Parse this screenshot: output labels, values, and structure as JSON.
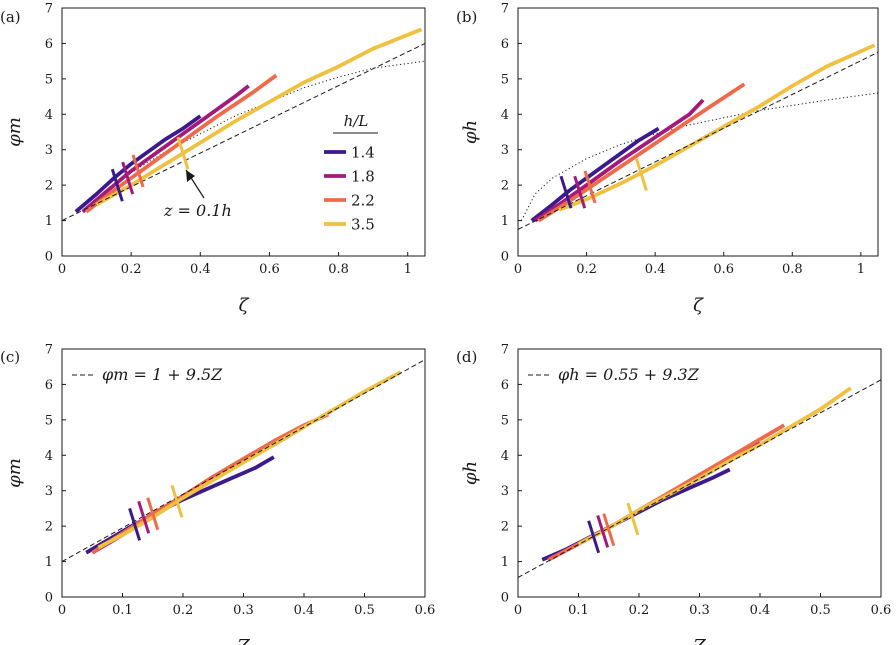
{
  "chart_data": [
    {
      "type": "line",
      "panel_label": "(a)",
      "xlabel": "ζ",
      "ylabel": "φm",
      "xlim": [
        0,
        1.05
      ],
      "ylim": [
        0,
        7
      ],
      "xticks": [
        "0",
        "0.2",
        "0.4",
        "0.6",
        "0.8",
        "1"
      ],
      "yticks": [
        "0",
        "1",
        "2",
        "3",
        "4",
        "5",
        "6",
        "7"
      ],
      "series": [
        {
          "name": "1.4",
          "color": "#3b1a8c",
          "x": [
            0.04,
            0.1,
            0.15,
            0.2,
            0.25,
            0.3,
            0.35,
            0.4
          ],
          "y": [
            1.25,
            1.75,
            2.2,
            2.6,
            2.95,
            3.3,
            3.6,
            3.95
          ],
          "marker_x": 0.16,
          "marker_y": 2.0
        },
        {
          "name": "1.8",
          "color": "#a31a7a",
          "x": [
            0.06,
            0.12,
            0.2,
            0.3,
            0.4,
            0.5,
            0.54
          ],
          "y": [
            1.25,
            1.75,
            2.4,
            3.1,
            3.8,
            4.5,
            4.8
          ],
          "marker_x": 0.19,
          "marker_y": 2.2
        },
        {
          "name": "2.2",
          "color": "#ef6a4a",
          "x": [
            0.07,
            0.15,
            0.25,
            0.35,
            0.45,
            0.55,
            0.62
          ],
          "y": [
            1.25,
            1.85,
            2.55,
            3.25,
            3.95,
            4.6,
            5.1
          ],
          "marker_x": 0.22,
          "marker_y": 2.4
        },
        {
          "name": "3.5",
          "color": "#f0c040",
          "x": [
            0.1,
            0.2,
            0.3,
            0.4,
            0.5,
            0.6,
            0.7,
            0.8,
            0.9,
            1.04
          ],
          "y": [
            1.45,
            2.0,
            2.6,
            3.2,
            3.8,
            4.35,
            4.9,
            5.35,
            5.85,
            6.4
          ],
          "marker_x": 0.35,
          "marker_y": 2.9
        }
      ],
      "reference_dashed": {
        "x": [
          0,
          1.05
        ],
        "y": [
          1.0,
          6.0
        ]
      },
      "reference_dotted": {
        "x": [
          0.12,
          0.2,
          0.3,
          0.4,
          0.5,
          0.6,
          0.7,
          0.8,
          0.9,
          1.05
        ],
        "y": [
          1.75,
          2.35,
          2.95,
          3.45,
          3.95,
          4.35,
          4.75,
          5.05,
          5.3,
          5.5
        ]
      },
      "legend_title": "h/L",
      "legend": [
        "1.4",
        "1.8",
        "2.2",
        "3.5"
      ],
      "annotation": "z = 0.1h"
    },
    {
      "type": "line",
      "panel_label": "(b)",
      "xlabel": "ζ",
      "ylabel": "φh",
      "xlim": [
        0,
        1.05
      ],
      "ylim": [
        0,
        7
      ],
      "xticks": [
        "0",
        "0.2",
        "0.4",
        "0.6",
        "0.8",
        "1"
      ],
      "yticks": [
        "0",
        "1",
        "2",
        "3",
        "4",
        "5",
        "6",
        "7"
      ],
      "series": [
        {
          "name": "1.4",
          "color": "#3b1a8c",
          "x": [
            0.04,
            0.1,
            0.15,
            0.2,
            0.25,
            0.3,
            0.35,
            0.41
          ],
          "y": [
            1.0,
            1.45,
            1.85,
            2.2,
            2.55,
            2.9,
            3.25,
            3.6
          ],
          "marker_x": 0.14,
          "marker_y": 1.8
        },
        {
          "name": "1.8",
          "color": "#a31a7a",
          "x": [
            0.05,
            0.12,
            0.2,
            0.3,
            0.4,
            0.5,
            0.54
          ],
          "y": [
            1.0,
            1.45,
            2.0,
            2.7,
            3.35,
            4.0,
            4.4
          ],
          "marker_x": 0.18,
          "marker_y": 1.8
        },
        {
          "name": "2.2",
          "color": "#ef6a4a",
          "x": [
            0.06,
            0.15,
            0.25,
            0.35,
            0.45,
            0.55,
            0.66
          ],
          "y": [
            1.0,
            1.55,
            2.2,
            2.85,
            3.5,
            4.15,
            4.85
          ],
          "marker_x": 0.21,
          "marker_y": 1.95
        },
        {
          "name": "3.5",
          "color": "#f0c040",
          "x": [
            0.12,
            0.2,
            0.3,
            0.4,
            0.5,
            0.6,
            0.7,
            0.8,
            0.9,
            1.04
          ],
          "y": [
            1.3,
            1.6,
            2.05,
            2.55,
            3.1,
            3.65,
            4.2,
            4.8,
            5.35,
            5.95
          ],
          "marker_x": 0.36,
          "marker_y": 2.3
        }
      ],
      "reference_dashed": {
        "x": [
          0,
          1.05
        ],
        "y": [
          0.75,
          5.75
        ]
      },
      "reference_dotted": {
        "x": [
          0.01,
          0.05,
          0.1,
          0.2,
          0.3,
          0.4,
          0.5,
          0.6,
          0.7,
          0.8,
          0.9,
          1.05
        ],
        "y": [
          1.0,
          1.75,
          2.2,
          2.75,
          3.15,
          3.45,
          3.7,
          3.9,
          4.1,
          4.25,
          4.4,
          4.6
        ]
      }
    },
    {
      "type": "line",
      "panel_label": "(c)",
      "xlabel": "Z",
      "ylabel": "φm",
      "xlim": [
        0,
        0.6
      ],
      "ylim": [
        0,
        7
      ],
      "xticks": [
        "0",
        "0.1",
        "0.2",
        "0.3",
        "0.4",
        "0.5",
        "0.6"
      ],
      "yticks": [
        "0",
        "1",
        "2",
        "3",
        "4",
        "5",
        "6",
        "7"
      ],
      "series": [
        {
          "name": "1.4",
          "color": "#3b1a8c",
          "x": [
            0.04,
            0.08,
            0.12,
            0.16,
            0.2,
            0.24,
            0.28,
            0.32,
            0.35
          ],
          "y": [
            1.25,
            1.65,
            2.05,
            2.4,
            2.75,
            3.05,
            3.35,
            3.65,
            3.95
          ],
          "marker_x": 0.12,
          "marker_y": 2.05
        },
        {
          "name": "1.8",
          "color": "#a31a7a",
          "x": [
            0.05,
            0.1,
            0.15,
            0.2,
            0.25,
            0.3,
            0.35,
            0.4
          ],
          "y": [
            1.25,
            1.75,
            2.3,
            2.85,
            3.35,
            3.85,
            4.3,
            4.8
          ],
          "marker_x": 0.135,
          "marker_y": 2.25
        },
        {
          "name": "2.2",
          "color": "#ef6a4a",
          "x": [
            0.05,
            0.1,
            0.15,
            0.2,
            0.25,
            0.3,
            0.35,
            0.4,
            0.44
          ],
          "y": [
            1.25,
            1.8,
            2.35,
            2.85,
            3.4,
            3.9,
            4.4,
            4.85,
            5.15
          ],
          "marker_x": 0.15,
          "marker_y": 2.35
        },
        {
          "name": "3.5",
          "color": "#f0c040",
          "x": [
            0.06,
            0.1,
            0.15,
            0.2,
            0.25,
            0.3,
            0.35,
            0.4,
            0.45,
            0.5,
            0.56
          ],
          "y": [
            1.4,
            1.75,
            2.25,
            2.8,
            3.3,
            3.8,
            4.3,
            4.8,
            5.3,
            5.8,
            6.35
          ],
          "marker_x": 0.19,
          "marker_y": 2.7
        }
      ],
      "reference_dashed": {
        "x": [
          0,
          0.6
        ],
        "y": [
          1.0,
          6.7
        ]
      },
      "fit_label": "φm = 1 + 9.5Z"
    },
    {
      "type": "line",
      "panel_label": "(d)",
      "xlabel": "Z",
      "ylabel": "φh",
      "xlim": [
        0,
        0.6
      ],
      "ylim": [
        0,
        7
      ],
      "xticks": [
        "0",
        "0.1",
        "0.2",
        "0.3",
        "0.4",
        "0.5",
        "0.6"
      ],
      "yticks": [
        "0",
        "1",
        "2",
        "3",
        "4",
        "5",
        "6",
        "7"
      ],
      "series": [
        {
          "name": "1.4",
          "color": "#3b1a8c",
          "x": [
            0.04,
            0.08,
            0.12,
            0.16,
            0.2,
            0.24,
            0.28,
            0.32,
            0.35
          ],
          "y": [
            1.05,
            1.35,
            1.7,
            2.05,
            2.4,
            2.75,
            3.05,
            3.35,
            3.6
          ],
          "marker_x": 0.125,
          "marker_y": 1.7
        },
        {
          "name": "1.8",
          "color": "#a31a7a",
          "x": [
            0.05,
            0.1,
            0.15,
            0.2,
            0.25,
            0.3,
            0.35,
            0.4
          ],
          "y": [
            1.05,
            1.5,
            1.95,
            2.45,
            2.9,
            3.35,
            3.85,
            4.35
          ],
          "marker_x": 0.14,
          "marker_y": 1.85
        },
        {
          "name": "2.2",
          "color": "#ef6a4a",
          "x": [
            0.05,
            0.1,
            0.15,
            0.2,
            0.25,
            0.3,
            0.35,
            0.4,
            0.44
          ],
          "y": [
            1.05,
            1.5,
            1.95,
            2.45,
            2.95,
            3.45,
            3.95,
            4.45,
            4.85
          ],
          "marker_x": 0.15,
          "marker_y": 1.9
        },
        {
          "name": "3.5",
          "color": "#f0c040",
          "x": [
            0.1,
            0.15,
            0.2,
            0.25,
            0.3,
            0.35,
            0.4,
            0.45,
            0.5,
            0.55
          ],
          "y": [
            1.5,
            1.95,
            2.45,
            2.9,
            3.35,
            3.85,
            4.3,
            4.8,
            5.3,
            5.9
          ],
          "marker_x": 0.19,
          "marker_y": 2.2
        }
      ],
      "reference_dashed": {
        "x": [
          0,
          0.6
        ],
        "y": [
          0.55,
          6.13
        ]
      },
      "fit_label": "φh = 0.55 + 9.3Z"
    }
  ]
}
